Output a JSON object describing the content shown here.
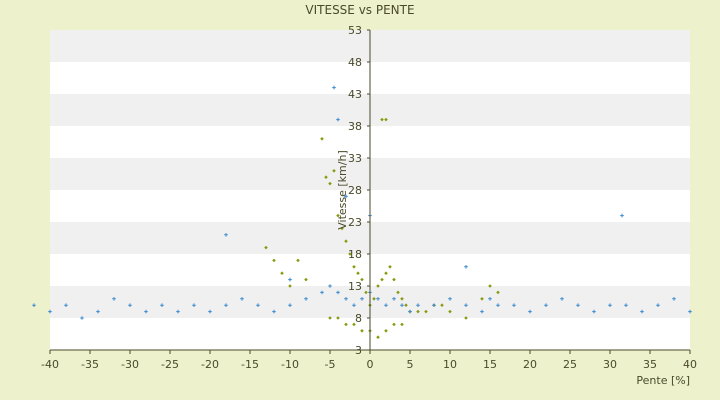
{
  "chart_data": {
    "type": "scatter",
    "title": "VITESSE vs PENTE",
    "xlabel": "Pente [%]",
    "ylabel": "Vitesse [km/h]",
    "xlim": [
      -40,
      40
    ],
    "ylim": [
      3,
      53
    ],
    "x_ticks": [
      -40,
      -35,
      -30,
      -25,
      -20,
      -15,
      -10,
      -5,
      0,
      5,
      10,
      15,
      20,
      25,
      30,
      35,
      40
    ],
    "y_ticks": [
      3,
      8,
      13,
      18,
      23,
      28,
      33,
      38,
      43,
      48,
      53
    ],
    "x_tick_labels": [
      "-40",
      "-35",
      "-30",
      "-25",
      "-20",
      "-15",
      "-10",
      "-5",
      "0",
      "5",
      "10",
      "15",
      "20",
      "25",
      "30",
      "35",
      "40"
    ],
    "y_tick_labels": [
      "3",
      "8",
      "13",
      "18",
      "23",
      "28",
      "33",
      "38",
      "43",
      "48",
      "53"
    ],
    "grid": "horizontal alternating bands",
    "legend": "none",
    "colors": {
      "background": "#eef2cc",
      "band_light": "#ffffff",
      "band_dark": "#f0f0f0",
      "series_a": "#8a9a10",
      "series_b": "#3a8ad0",
      "axis": "#4a4a2a"
    },
    "series": [
      {
        "marker": "diamond",
        "color": "#8a9a10",
        "x": [
          -6,
          -5.5,
          -5,
          -4.5,
          -4,
          -3.5,
          -3,
          -2.5,
          -2,
          -1.5,
          -1,
          -0.5,
          0,
          0.5,
          1,
          1.5,
          2,
          2.5,
          3,
          3.5,
          4,
          4.5,
          5,
          6,
          7,
          8,
          -8,
          -9,
          -10,
          -11,
          -12,
          -13,
          9,
          10,
          12,
          14,
          15,
          16,
          -5,
          -4,
          -3,
          -2,
          -1,
          0,
          1,
          2,
          3,
          4,
          1.5,
          2
        ],
        "y": [
          36,
          30,
          29,
          31,
          24,
          22,
          20,
          18,
          16,
          15,
          14,
          12,
          10,
          11,
          13,
          14,
          15,
          16,
          14,
          12,
          11,
          10,
          9,
          9,
          9,
          10,
          14,
          17,
          13,
          15,
          17,
          19,
          10,
          9,
          8,
          11,
          13,
          12,
          8,
          8,
          7,
          7,
          6,
          6,
          5,
          6,
          7,
          7,
          39,
          39
        ]
      },
      {
        "marker": "cross",
        "color": "#3a8ad0",
        "x": [
          -42,
          -40,
          -38,
          -36,
          -34,
          -32,
          -30,
          -28,
          -26,
          -24,
          -22,
          -20,
          -18,
          -16,
          -14,
          -12,
          -10,
          -8,
          -6,
          -5,
          -4,
          -3,
          -2,
          -1,
          0,
          1,
          2,
          3,
          4,
          5,
          6,
          8,
          10,
          12,
          14,
          15,
          16,
          18,
          20,
          22,
          24,
          26,
          28,
          30,
          31.5,
          32,
          34,
          36,
          38,
          40,
          -4.5,
          -4,
          -3,
          0,
          -18,
          -10,
          12
        ],
        "y": [
          10,
          9,
          10,
          8,
          9,
          11,
          10,
          9,
          10,
          9,
          10,
          9,
          10,
          11,
          10,
          9,
          10,
          11,
          12,
          13,
          12,
          11,
          10,
          11,
          12,
          11,
          10,
          11,
          10,
          9,
          10,
          10,
          11,
          10,
          9,
          11,
          10,
          10,
          9,
          10,
          11,
          10,
          9,
          10,
          24,
          10,
          9,
          10,
          11,
          9,
          44,
          39,
          27,
          24,
          21,
          14,
          16
        ]
      }
    ]
  }
}
